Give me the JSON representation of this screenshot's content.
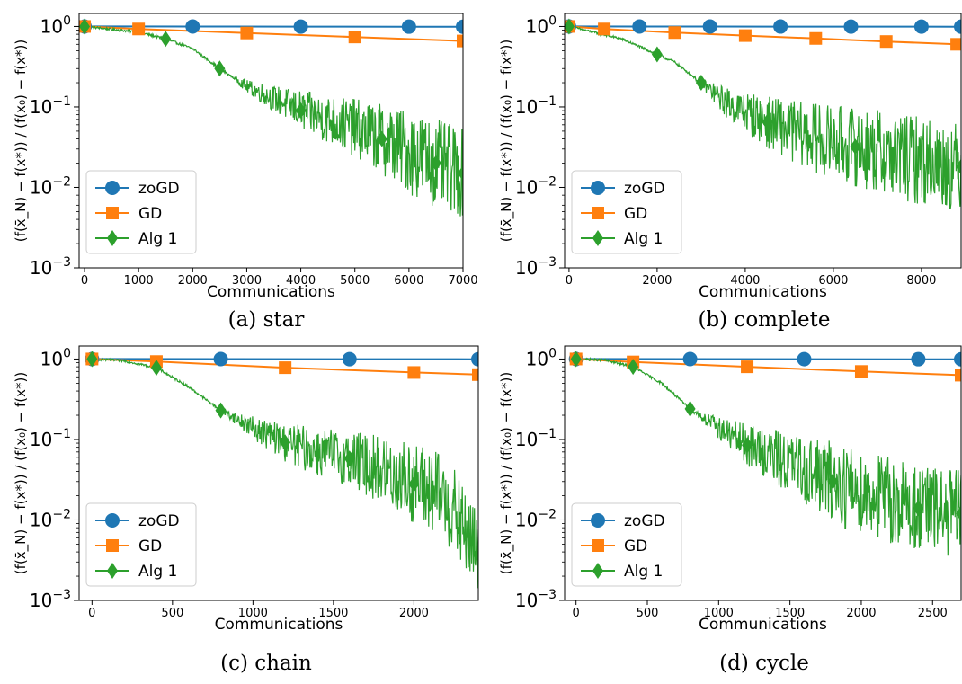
{
  "figure": {
    "legend_labels": [
      "zoGD",
      "GD",
      "Alg 1"
    ],
    "xlabel": "Communications",
    "ylabel": "(f(x̄_N) − f(x*)) / (f(x₀) − f(x*))",
    "series_colors": {
      "zoGD": "#1f77b4",
      "GD": "#ff7f0e",
      "Alg 1": "#2ca02c"
    },
    "series_markers": {
      "zoGD": "circle",
      "GD": "square",
      "Alg 1": "diamond"
    }
  },
  "chart_data": [
    {
      "type": "line",
      "caption": "(a) star",
      "xlabel": "Communications",
      "ylabel": "(f(x̄_N) − f(x*)) / (f(x₀) − f(x*))",
      "x_ticks": [
        0,
        1000,
        2000,
        3000,
        4000,
        5000,
        6000,
        7000
      ],
      "y_ticks": [
        "10^0",
        "10^-1",
        "10^-2",
        "10^-3"
      ],
      "y_scale": "log",
      "xlim": [
        -100,
        7000
      ],
      "ylim": [
        0.001,
        1.45
      ],
      "legend_position": "lower left",
      "series": [
        {
          "name": "zoGD",
          "x": [
            0,
            2000,
            4000,
            6000,
            7000
          ],
          "y": [
            1.0,
            0.998,
            0.996,
            0.994,
            0.993
          ]
        },
        {
          "name": "GD",
          "x": [
            0,
            1000,
            3000,
            5000,
            7000
          ],
          "y": [
            1.0,
            0.93,
            0.83,
            0.74,
            0.66
          ]
        },
        {
          "name": "Alg 1",
          "x": [
            0,
            1000,
            1500,
            2000,
            2500,
            3000,
            4000,
            5000,
            5500,
            6000,
            6500,
            7000
          ],
          "y": [
            1.0,
            0.85,
            0.7,
            0.53,
            0.3,
            0.18,
            0.09,
            0.055,
            0.04,
            0.028,
            0.02,
            0.015
          ]
        }
      ]
    },
    {
      "type": "line",
      "caption": "(b) complete",
      "xlabel": "Communications",
      "ylabel": "(f(x̄_N) − f(x*)) / (f(x₀) − f(x*))",
      "x_ticks": [
        0,
        2000,
        4000,
        6000,
        8000
      ],
      "y_ticks": [
        "10^0",
        "10^-1",
        "10^-2",
        "10^-3"
      ],
      "y_scale": "log",
      "xlim": [
        -100,
        8900
      ],
      "ylim": [
        0.001,
        1.45
      ],
      "legend_position": "lower left",
      "series": [
        {
          "name": "zoGD",
          "x": [
            0,
            1600,
            3200,
            4800,
            6400,
            8000,
            8900
          ],
          "y": [
            1.0,
            0.999,
            0.998,
            0.997,
            0.996,
            0.995,
            0.994
          ]
        },
        {
          "name": "GD",
          "x": [
            0,
            800,
            2400,
            4000,
            5600,
            7200,
            8800
          ],
          "y": [
            1.0,
            0.93,
            0.84,
            0.77,
            0.71,
            0.65,
            0.6
          ]
        },
        {
          "name": "Alg 1",
          "x": [
            0,
            1200,
            2000,
            2400,
            3000,
            3600,
            4500,
            5500,
            6500,
            7500,
            8900
          ],
          "y": [
            1.0,
            0.7,
            0.45,
            0.36,
            0.2,
            0.11,
            0.065,
            0.042,
            0.032,
            0.024,
            0.018
          ]
        }
      ]
    },
    {
      "type": "line",
      "caption": "(c) chain",
      "xlabel": "Communications",
      "ylabel": "(f(x̄_N) − f(x*)) / (f(x₀) − f(x*))",
      "x_ticks": [
        0,
        500,
        1000,
        1500,
        2000
      ],
      "y_ticks": [
        "10^0",
        "10^-1",
        "10^-2",
        "10^-3"
      ],
      "y_scale": "log",
      "xlim": [
        -80,
        2400
      ],
      "ylim": [
        0.001,
        1.45
      ],
      "legend_position": "lower left",
      "series": [
        {
          "name": "zoGD",
          "x": [
            0,
            800,
            1600,
            2400
          ],
          "y": [
            1.0,
            0.998,
            0.996,
            0.994
          ]
        },
        {
          "name": "GD",
          "x": [
            0,
            400,
            1200,
            2000,
            2400
          ],
          "y": [
            1.0,
            0.93,
            0.78,
            0.68,
            0.64
          ]
        },
        {
          "name": "Alg 1",
          "x": [
            0,
            200,
            400,
            600,
            800,
            1000,
            1200,
            1400,
            1600,
            1800,
            2000,
            2200,
            2400
          ],
          "y": [
            1.0,
            0.95,
            0.78,
            0.45,
            0.23,
            0.14,
            0.092,
            0.07,
            0.058,
            0.042,
            0.028,
            0.018,
            0.0037
          ]
        }
      ]
    },
    {
      "type": "line",
      "caption": "(d) cycle",
      "xlabel": "Communications",
      "ylabel": "(f(x̄_N) − f(x*)) / (f(x₀) − f(x*))",
      "x_ticks": [
        0,
        500,
        1000,
        1500,
        2000,
        2500
      ],
      "y_ticks": [
        "10^0",
        "10^-1",
        "10^-2",
        "10^-3"
      ],
      "y_scale": "log",
      "xlim": [
        -80,
        2700
      ],
      "ylim": [
        0.001,
        1.45
      ],
      "legend_position": "lower left",
      "series": [
        {
          "name": "zoGD",
          "x": [
            0,
            800,
            1600,
            2400,
            2700
          ],
          "y": [
            1.0,
            0.998,
            0.996,
            0.994,
            0.993
          ]
        },
        {
          "name": "GD",
          "x": [
            0,
            400,
            1200,
            2000,
            2700
          ],
          "y": [
            1.0,
            0.92,
            0.8,
            0.7,
            0.63
          ]
        },
        {
          "name": "Alg 1",
          "x": [
            0,
            200,
            400,
            600,
            800,
            1000,
            1200,
            1500,
            1800,
            2100,
            2400,
            2700
          ],
          "y": [
            1.0,
            0.97,
            0.8,
            0.5,
            0.24,
            0.14,
            0.085,
            0.05,
            0.03,
            0.02,
            0.014,
            0.012
          ]
        }
      ]
    }
  ]
}
